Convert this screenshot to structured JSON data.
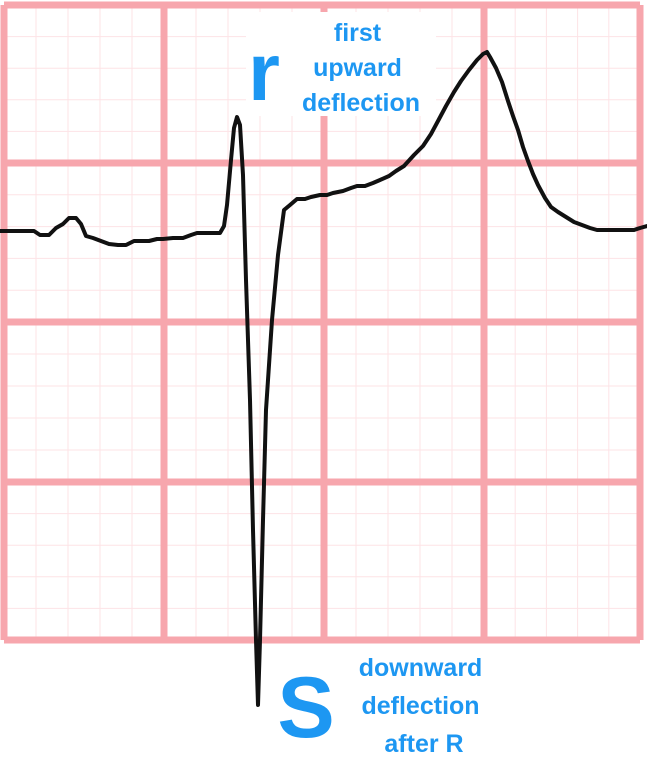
{
  "labels": {
    "r_wave": {
      "letter": "r",
      "desc_lines": [
        "first",
        "upward",
        "deflection"
      ]
    },
    "s_wave": {
      "letter": "S",
      "desc_lines": [
        "downward",
        "deflection",
        "after R"
      ]
    }
  },
  "colors": {
    "grid_major": "#f7a6ad",
    "grid_minor": "#fde3e6",
    "trace": "#111111",
    "label": "#1d97f2",
    "label_background": "#ffffff"
  }
}
